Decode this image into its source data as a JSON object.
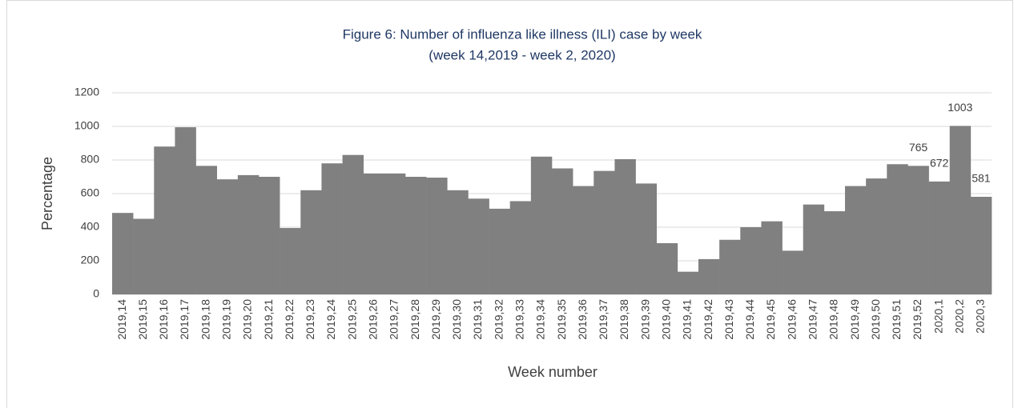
{
  "chart_data": {
    "type": "bar",
    "title": "Figure 6: Number of influenza like illness (ILI) case by week",
    "subtitle": "(week 14,2019 - week 2, 2020)",
    "x_label": "Week number",
    "y_label": "Percentage",
    "categories": [
      "2019,14",
      "2019,15",
      "2019,16",
      "2019,17",
      "2019,18",
      "2019,19",
      "2019,20",
      "2019,21",
      "2019,22",
      "2019,23",
      "2019,24",
      "2019,25",
      "2019,26",
      "2019,27",
      "2019,28",
      "2019,29",
      "2019,30",
      "2019,31",
      "2019,32",
      "2019,33",
      "2019,34",
      "2019,35",
      "2019,36",
      "2019,37",
      "2019,38",
      "2019,39",
      "2019,40",
      "2019,41",
      "2019,42",
      "2019,43",
      "2019,44",
      "2019,45",
      "2019,46",
      "2019,47",
      "2019,48",
      "2019,49",
      "2019,50",
      "2019,51",
      "2019,52",
      "2020,1",
      "2020,2",
      "2020,3"
    ],
    "values": [
      485,
      450,
      880,
      995,
      765,
      685,
      710,
      700,
      395,
      620,
      780,
      830,
      720,
      720,
      700,
      695,
      620,
      570,
      510,
      555,
      820,
      750,
      645,
      735,
      805,
      660,
      305,
      135,
      210,
      325,
      400,
      435,
      260,
      535,
      495,
      645,
      690,
      775,
      765,
      672,
      1003,
      581
    ],
    "value_labels": [
      null,
      null,
      null,
      null,
      null,
      null,
      null,
      null,
      null,
      null,
      null,
      null,
      null,
      null,
      null,
      null,
      null,
      null,
      null,
      null,
      null,
      null,
      null,
      null,
      null,
      null,
      null,
      null,
      null,
      null,
      null,
      null,
      null,
      null,
      null,
      null,
      null,
      null,
      "765",
      "672",
      "1003",
      "581"
    ],
    "color": "#808080",
    "ylim": [
      0,
      1200
    ],
    "yticks": [
      0,
      200,
      400,
      600,
      800,
      1000,
      1200
    ],
    "grid": true
  }
}
